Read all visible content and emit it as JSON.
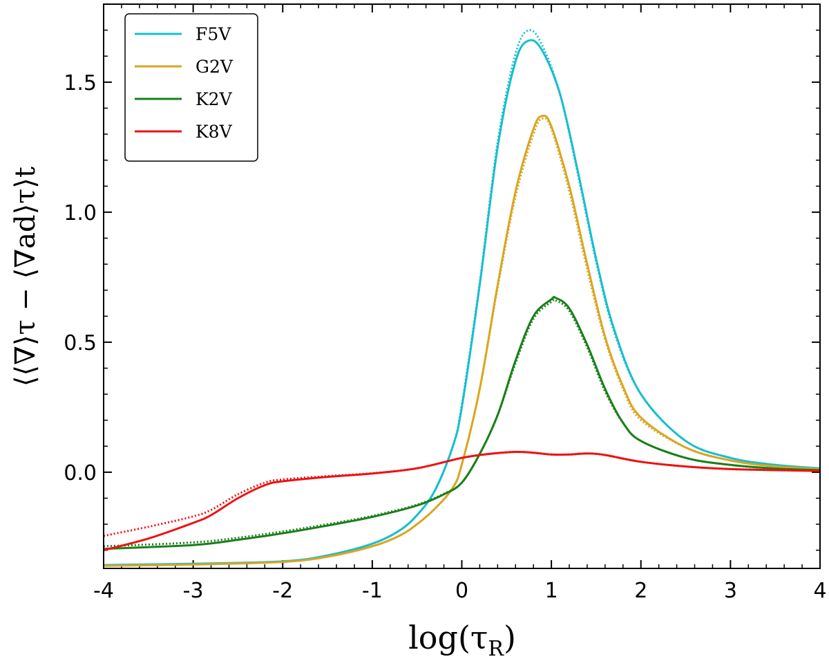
{
  "chart_data": {
    "type": "line",
    "xlabel": "log(τR)",
    "xlabel_main": "log(τ",
    "xlabel_sub": "R",
    "xlabel_close": ")",
    "ylabel": "⟨⟨∇⟩τ − ⟨∇ad⟩τ⟩t",
    "xlim": [
      -4,
      4
    ],
    "ylim": [
      -0.37,
      1.8
    ],
    "xticks": [
      -4,
      -3,
      -2,
      -1,
      0,
      1,
      2,
      3,
      4
    ],
    "xtick_labels": [
      "-4",
      "-3",
      "-2",
      "-1",
      "0",
      "1",
      "2",
      "3",
      "4"
    ],
    "yticks": [
      0.0,
      0.5,
      1.0,
      1.5
    ],
    "ytick_labels": [
      "0.0",
      "0.5",
      "1.0",
      "1.5"
    ],
    "legend_location": "top-left",
    "series": [
      {
        "name": "F5V",
        "color": "#17becf",
        "x": [
          -4,
          -3,
          -2,
          -1.5,
          -1,
          -0.7,
          -0.5,
          -0.3,
          -0.1,
          0,
          0.2,
          0.4,
          0.6,
          0.75,
          0.9,
          1.1,
          1.3,
          1.5,
          1.7,
          2,
          2.5,
          3,
          3.5,
          4
        ],
        "y": [
          -0.357,
          -0.352,
          -0.343,
          -0.32,
          -0.275,
          -0.225,
          -0.165,
          -0.07,
          0.1,
          0.25,
          0.72,
          1.25,
          1.58,
          1.66,
          1.62,
          1.45,
          1.15,
          0.82,
          0.55,
          0.3,
          0.12,
          0.055,
          0.028,
          0.015
        ],
        "dotted": [
          -0.357,
          -0.352,
          -0.343,
          -0.32,
          -0.275,
          -0.225,
          -0.165,
          -0.07,
          0.1,
          0.26,
          0.73,
          1.27,
          1.61,
          1.7,
          1.64,
          1.45,
          1.14,
          0.81,
          0.54,
          0.3,
          0.12,
          0.055,
          0.028,
          0.015
        ]
      },
      {
        "name": "G2V",
        "color": "#daa520",
        "x": [
          -4,
          -3,
          -2,
          -1.5,
          -1,
          -0.7,
          -0.5,
          -0.3,
          -0.1,
          0,
          0.2,
          0.4,
          0.6,
          0.8,
          0.9,
          1,
          1.2,
          1.4,
          1.6,
          1.8,
          2,
          2.5,
          3,
          3.5,
          4
        ],
        "y": [
          -0.36,
          -0.355,
          -0.345,
          -0.325,
          -0.285,
          -0.245,
          -0.2,
          -0.14,
          -0.06,
          0.03,
          0.32,
          0.72,
          1.08,
          1.32,
          1.37,
          1.33,
          1.1,
          0.8,
          0.52,
          0.33,
          0.21,
          0.095,
          0.045,
          0.022,
          0.012
        ],
        "dotted": [
          -0.36,
          -0.355,
          -0.345,
          -0.325,
          -0.285,
          -0.245,
          -0.2,
          -0.14,
          -0.06,
          0.03,
          0.32,
          0.71,
          1.06,
          1.3,
          1.36,
          1.32,
          1.08,
          0.78,
          0.51,
          0.32,
          0.2,
          0.095,
          0.045,
          0.022,
          0.012
        ]
      },
      {
        "name": "K2V",
        "color": "#1a7f1a",
        "x": [
          -4,
          -3,
          -2.5,
          -2,
          -1.5,
          -1,
          -0.5,
          -0.2,
          0,
          0.2,
          0.4,
          0.6,
          0.8,
          1,
          1.05,
          1.2,
          1.4,
          1.6,
          1.8,
          2,
          2.5,
          3,
          3.5,
          4
        ],
        "y": [
          -0.295,
          -0.28,
          -0.26,
          -0.235,
          -0.205,
          -0.172,
          -0.128,
          -0.085,
          -0.04,
          0.07,
          0.22,
          0.43,
          0.6,
          0.665,
          0.67,
          0.63,
          0.49,
          0.32,
          0.19,
          0.12,
          0.055,
          0.028,
          0.014,
          0.008
        ],
        "dotted": [
          -0.285,
          -0.27,
          -0.252,
          -0.228,
          -0.2,
          -0.168,
          -0.125,
          -0.083,
          -0.04,
          0.07,
          0.22,
          0.42,
          0.59,
          0.655,
          0.66,
          0.62,
          0.48,
          0.31,
          0.19,
          0.12,
          0.055,
          0.028,
          0.014,
          0.008
        ]
      },
      {
        "name": "K8V",
        "color": "#ee1111",
        "x": [
          -4,
          -3.5,
          -3,
          -2.8,
          -2.5,
          -2.2,
          -2,
          -1.5,
          -1,
          -0.5,
          0,
          0.3,
          0.6,
          0.8,
          1,
          1.2,
          1.4,
          1.6,
          2,
          2.5,
          3,
          3.5,
          4
        ],
        "y": [
          -0.3,
          -0.255,
          -0.195,
          -0.165,
          -0.1,
          -0.05,
          -0.035,
          -0.018,
          -0.005,
          0.015,
          0.055,
          0.07,
          0.078,
          0.075,
          0.068,
          0.068,
          0.072,
          0.066,
          0.04,
          0.022,
          0.012,
          0.008,
          0.005
        ],
        "dotted": [
          -0.245,
          -0.21,
          -0.17,
          -0.145,
          -0.085,
          -0.04,
          -0.028,
          -0.015,
          -0.004,
          0.015,
          0.055,
          0.07,
          0.078,
          0.075,
          0.068,
          0.068,
          0.072,
          0.066,
          0.04,
          0.022,
          0.012,
          0.008,
          0.005
        ]
      }
    ]
  }
}
